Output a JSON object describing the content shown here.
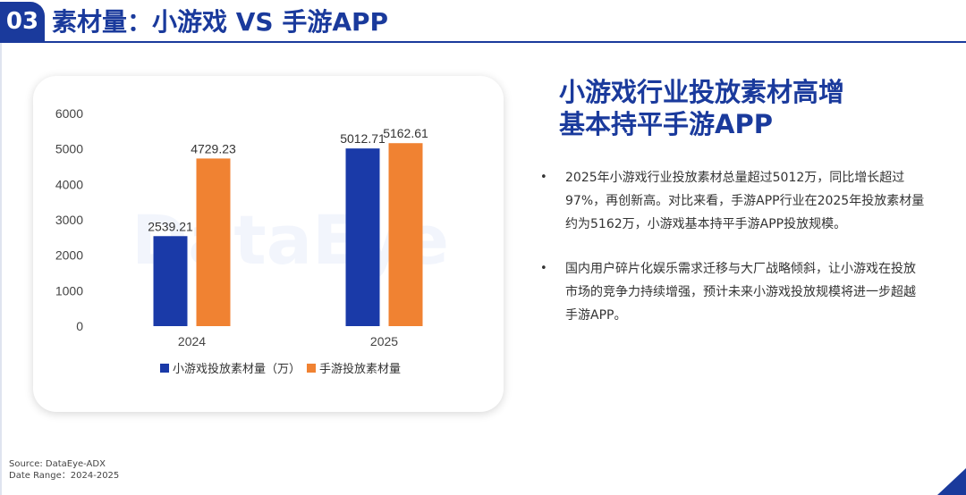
{
  "header": {
    "section_number": "03",
    "title": "素材量：小游戏 VS 手游APP"
  },
  "headline": {
    "line1": "小游戏行业投放素材高增",
    "line2": "基本持平手游APP"
  },
  "bullets": [
    {
      "marker": "•",
      "text": "2025年小游戏行业投放素材总量超过5012万，同比增长超过97%，再创新高。对比来看，手游APP行业在2025年投放素材量约为5162万，小游戏基本持平手游APP投放规模。"
    },
    {
      "marker": "•",
      "text": "国内用户碎片化娱乐需求迁移与大厂战略倾斜，让小游戏在投放市场的竞争力持续增强，预计未来小游戏投放规模将进一步超越手游APP。"
    }
  ],
  "source": {
    "line1": "Source: DataEye-ADX",
    "line2": "Date Range：2024-2025"
  },
  "watermark": "DataEye",
  "colors": {
    "brand": "#1a3a9c",
    "series1": "#1a3aa8",
    "series2": "#f08232"
  },
  "chart_data": {
    "type": "bar",
    "categories": [
      "2024",
      "2025"
    ],
    "series": [
      {
        "name": "小游戏投放素材量（万）",
        "values": [
          2539.21,
          5012.71
        ],
        "labels": [
          "2539.21",
          "5012.71"
        ]
      },
      {
        "name": "手游投放素材量",
        "values": [
          4729.23,
          5162.61
        ],
        "labels": [
          "4729.23",
          "5162.61"
        ]
      }
    ],
    "ylim": [
      0,
      6000
    ],
    "yticks": [
      "0",
      "1000",
      "2000",
      "3000",
      "4000",
      "5000",
      "6000"
    ],
    "grid": false,
    "legend": "bottom"
  }
}
